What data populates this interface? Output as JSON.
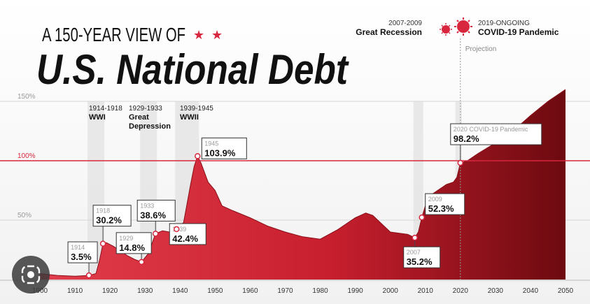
{
  "header": {
    "subtitle": "A 150-YEAR VIEW OF",
    "title": "U.S. National Debt"
  },
  "events": {
    "recession": {
      "years": "2007-2009",
      "label": "Great Recession"
    },
    "covid": {
      "years": "2019-ONGOING",
      "label": "COVID-19 Pandemic"
    },
    "wwi": {
      "years": "1914-1918",
      "label": "WWI"
    },
    "depression": {
      "years": "1929-1933",
      "label1": "Great",
      "label2": "Depression"
    },
    "wwii": {
      "years": "1939-1945",
      "label": "WWII"
    }
  },
  "projection_label": "Projection",
  "colors": {
    "accent": "#d7263d",
    "dark": "#7a0a12",
    "text": "#111111",
    "band": "#e6e6e6"
  },
  "chart_data": {
    "type": "area",
    "title": "U.S. National Debt",
    "xlabel": "",
    "ylabel": "",
    "xlim": [
      1900,
      2050
    ],
    "ylim": [
      0,
      160
    ],
    "x_ticks": [
      1900,
      1910,
      1920,
      1930,
      1940,
      1950,
      1960,
      1970,
      1980,
      1990,
      2000,
      2010,
      2020,
      2030,
      2040,
      2050
    ],
    "y_ticks": [
      {
        "value": 150,
        "label": "150%"
      },
      {
        "value": 100,
        "label": "100%"
      },
      {
        "value": 50,
        "label": "50%"
      }
    ],
    "reference_line": 100,
    "projection_start": 2020,
    "shaded_periods": [
      [
        1914,
        1918
      ],
      [
        1929,
        1933
      ],
      [
        1939,
        1945
      ],
      [
        2007,
        2009
      ],
      [
        2019,
        2020
      ]
    ],
    "series": [
      {
        "x": [
          1900,
          1905,
          1910,
          1914,
          1916,
          1917,
          1918,
          1919,
          1921,
          1923,
          1925,
          1927,
          1929,
          1931,
          1933,
          1935,
          1937,
          1939,
          1941,
          1943,
          1944,
          1945,
          1946,
          1948,
          1950,
          1952,
          1955,
          1960,
          1965,
          1970,
          1975,
          1980,
          1985,
          1990,
          1993,
          1995,
          2000,
          2005,
          2007,
          2008,
          2009,
          2010,
          2012,
          2014,
          2016,
          2018,
          2019,
          2020,
          2022,
          2025,
          2030,
          2035,
          2040,
          2045,
          2050
        ],
        "values": [
          5,
          3.5,
          2.8,
          3.5,
          5,
          16,
          30.2,
          31,
          28,
          24,
          20,
          17,
          14.8,
          22,
          38.6,
          41,
          40,
          42.4,
          48,
          80,
          95,
          103.9,
          98,
          82,
          75,
          62,
          58,
          52,
          45,
          40,
          36,
          34,
          42,
          52,
          56,
          54,
          40,
          38,
          35.2,
          40,
          52.3,
          62,
          72,
          76,
          80,
          82,
          86,
          98.2,
          100,
          106,
          115,
          125,
          138,
          150,
          160
        ]
      }
    ],
    "annotations": [
      {
        "year": "1914",
        "value": "3.5%",
        "x": 1914,
        "y": 3.5
      },
      {
        "year": "1918",
        "value": "30.2%",
        "x": 1918,
        "y": 30.2
      },
      {
        "year": "1929",
        "value": "14.8%",
        "x": 1929,
        "y": 14.8
      },
      {
        "year": "1933",
        "value": "38.6%",
        "x": 1933,
        "y": 38.6
      },
      {
        "year": "1939",
        "value": "42.4%",
        "x": 1939,
        "y": 42.4
      },
      {
        "year": "1945",
        "value": "103.9%",
        "x": 1945,
        "y": 103.9
      },
      {
        "year": "2007",
        "value": "35.2%",
        "x": 2007,
        "y": 35.2
      },
      {
        "year": "2009",
        "value": "52.3%",
        "x": 2009,
        "y": 52.3
      },
      {
        "year": "2020 COVID-19 Pandemic",
        "value": "98.2%",
        "x": 2020,
        "y": 98.2
      }
    ]
  }
}
